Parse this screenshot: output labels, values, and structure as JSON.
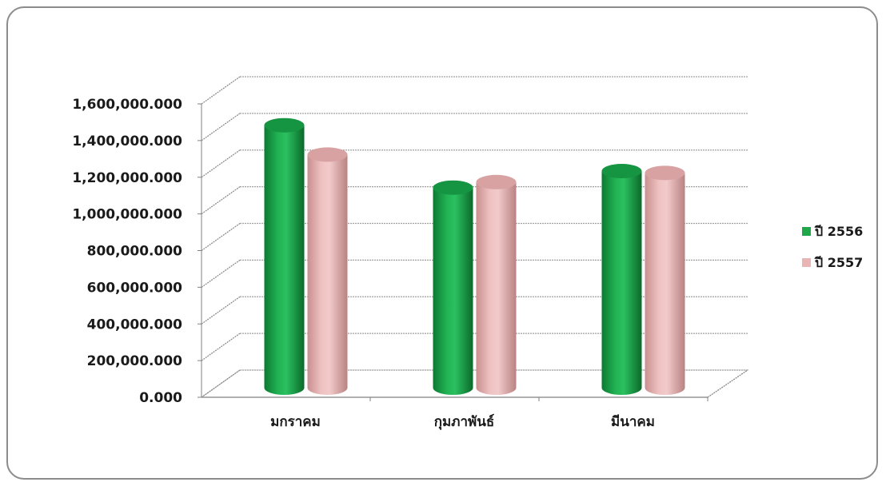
{
  "chart_data": {
    "type": "bar",
    "style": "3d-cylinder",
    "categories": [
      "มกราคม",
      "กุมภาพันธ์",
      "มีนาคม"
    ],
    "series": [
      {
        "name": "ปี 2556",
        "color": "#1fa84a",
        "values": [
          1440000000,
          1100000000,
          1190000000
        ]
      },
      {
        "name": "ปี 2557",
        "color": "#e8b4b4",
        "values": [
          1280000000,
          1130000000,
          1180000000
        ]
      }
    ],
    "ylim": [
      0,
      1600000000
    ],
    "yticks": [
      0,
      200000000,
      400000000,
      600000000,
      800000000,
      1000000000,
      1200000000,
      1400000000,
      1600000000
    ],
    "ytick_labels": [
      "0.000",
      "200,000.000",
      "400,000.000",
      "600,000.000",
      "800,000.000",
      "1,000,000.000",
      "1,200,000.000",
      "1,400,000.000",
      "1,600,000.000"
    ],
    "grid": true,
    "legend_position": "right",
    "title": "",
    "xlabel": "",
    "ylabel": ""
  }
}
